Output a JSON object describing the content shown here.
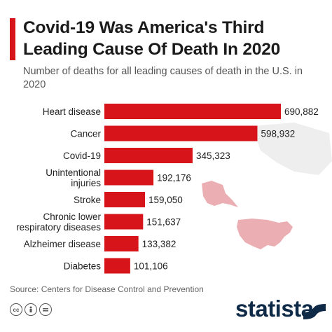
{
  "title": "Covid-19 Was America's Third Leading Cause Of Death In 2020",
  "subtitle": "Number of deaths for all leading causes of death in the U.S. in 2020",
  "source": "Source: Centers for Disease Control and Prevention",
  "brand": "statista",
  "colors": {
    "accent": "#d7141a",
    "bar": "#d7141a",
    "map": "#e8a0a4"
  },
  "icons": [
    "cc-icon",
    "attribution-icon",
    "no-derivatives-icon"
  ],
  "chart_data": {
    "type": "bar",
    "orientation": "horizontal",
    "categories": [
      [
        "Heart disease"
      ],
      [
        "Cancer"
      ],
      [
        "Covid-19"
      ],
      [
        "Unintentional",
        "injuries"
      ],
      [
        "Stroke"
      ],
      [
        "Chronic lower",
        "respiratory diseases"
      ],
      [
        "Alzheimer disease"
      ],
      [
        "Diabetes"
      ]
    ],
    "values": [
      690882,
      598932,
      345323,
      192176,
      159050,
      151637,
      133382,
      101106
    ],
    "value_labels": [
      "690,882",
      "598,932",
      "345,323",
      "192,176",
      "159,050",
      "151,637",
      "133,382",
      "101,106"
    ],
    "title": "Covid-19 Was America's Third Leading Cause Of Death In 2020",
    "xlabel": "",
    "ylabel": "",
    "xlim": [
      0,
      690882
    ],
    "grid": false,
    "legend": "none"
  }
}
